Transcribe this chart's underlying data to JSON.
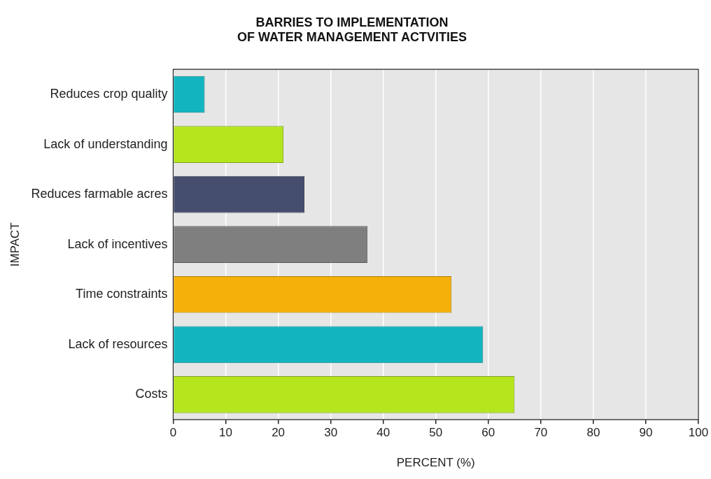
{
  "chart_data": {
    "type": "bar",
    "orientation": "horizontal",
    "title": "BARRIES TO IMPLEMENTATION\nOF WATER MANAGEMENT ACTVITIES",
    "xlabel": "PERCENT (%)",
    "ylabel": "IMPACT",
    "categories": [
      "Reduces crop quality",
      "Lack of understanding",
      "Reduces farmable acres",
      "Lack of incentives",
      "Time constraints",
      "Lack of resources",
      "Costs"
    ],
    "values": [
      6,
      21,
      25,
      37,
      53,
      59,
      65
    ],
    "colors": [
      "#12b5bf",
      "#b5e61d",
      "#464e6e",
      "#7f7f7f",
      "#f5b10a",
      "#12b5bf",
      "#b5e61d"
    ],
    "xlim": [
      0,
      100
    ],
    "xticks": [
      0,
      10,
      20,
      30,
      40,
      50,
      60,
      70,
      80,
      90,
      100
    ],
    "grid": "x",
    "legend": false
  }
}
